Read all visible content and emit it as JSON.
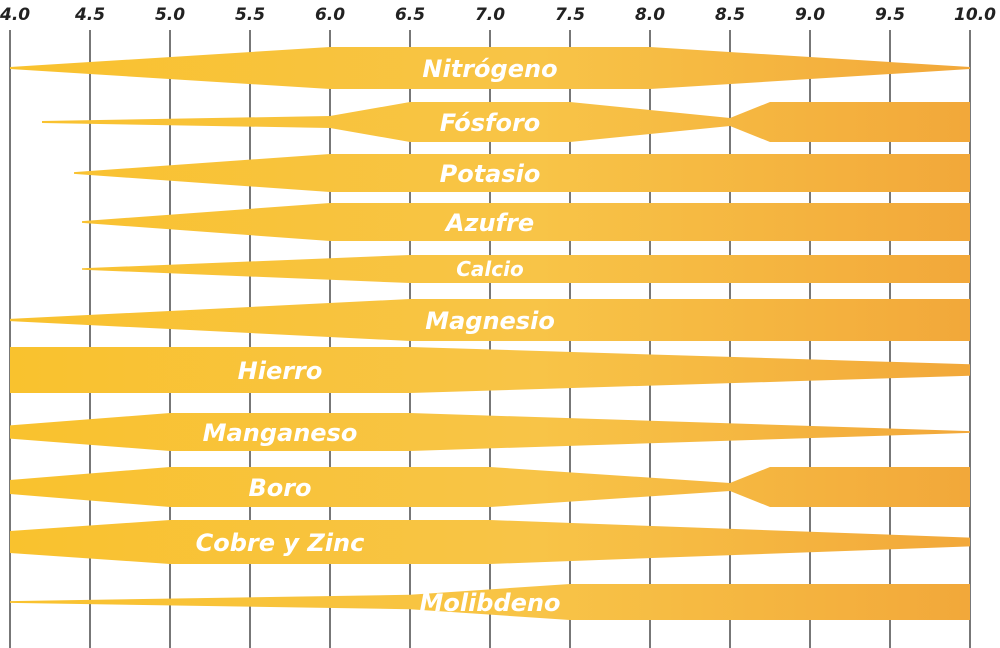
{
  "chart_data": {
    "type": "area",
    "x_ticks": [
      "4.0",
      "4.5",
      "5.0",
      "5.5",
      "6.0",
      "6.5",
      "7.0",
      "7.5",
      "8.0",
      "8.5",
      "9.0",
      "9.5",
      "10.0"
    ],
    "xlim": [
      4.0,
      10.0
    ],
    "grid": true,
    "colors": {
      "band_start": "#F9C22E",
      "band_end": "#F2A83A",
      "gridline": "#555555"
    },
    "series": [
      {
        "name": "Nitrógeno",
        "points": [
          [
            4.0,
            0.05
          ],
          [
            6.0,
            1.0
          ],
          [
            8.0,
            1.0
          ],
          [
            10.0,
            0.05
          ]
        ]
      },
      {
        "name": "Fósforo",
        "points": [
          [
            4.2,
            0.05
          ],
          [
            6.0,
            0.3
          ],
          [
            6.5,
            1.0
          ],
          [
            7.5,
            1.0
          ],
          [
            8.5,
            0.2
          ],
          [
            8.75,
            1.0
          ],
          [
            10.0,
            1.0
          ]
        ]
      },
      {
        "name": "Potasio",
        "points": [
          [
            4.4,
            0.05
          ],
          [
            6.0,
            1.0
          ],
          [
            10.0,
            1.0
          ]
        ]
      },
      {
        "name": "Azufre",
        "points": [
          [
            4.45,
            0.05
          ],
          [
            6.0,
            1.0
          ],
          [
            10.0,
            1.0
          ]
        ]
      },
      {
        "name": "Calcio",
        "points": [
          [
            4.45,
            0.05
          ],
          [
            6.5,
            1.0
          ],
          [
            10.0,
            1.0
          ]
        ]
      },
      {
        "name": "Magnesio",
        "points": [
          [
            4.0,
            0.05
          ],
          [
            6.5,
            1.0
          ],
          [
            10.0,
            1.0
          ]
        ]
      },
      {
        "name": "Hierro",
        "points": [
          [
            4.0,
            1.0
          ],
          [
            6.5,
            1.0
          ],
          [
            10.0,
            0.25
          ]
        ]
      },
      {
        "name": "Manganeso",
        "points": [
          [
            4.0,
            0.35
          ],
          [
            5.0,
            1.0
          ],
          [
            6.5,
            1.0
          ],
          [
            10.0,
            0.05
          ]
        ]
      },
      {
        "name": "Boro",
        "points": [
          [
            4.0,
            0.35
          ],
          [
            5.0,
            1.0
          ],
          [
            7.0,
            1.0
          ],
          [
            8.5,
            0.2
          ],
          [
            8.75,
            1.0
          ],
          [
            10.0,
            1.0
          ]
        ]
      },
      {
        "name": "Cobre y Zinc",
        "points": [
          [
            4.0,
            0.5
          ],
          [
            5.0,
            1.0
          ],
          [
            7.0,
            1.0
          ],
          [
            10.0,
            0.2
          ]
        ]
      },
      {
        "name": "Molibdeno",
        "points": [
          [
            4.0,
            0.05
          ],
          [
            6.5,
            0.4
          ],
          [
            7.5,
            1.0
          ],
          [
            10.0,
            1.0
          ]
        ]
      }
    ]
  }
}
